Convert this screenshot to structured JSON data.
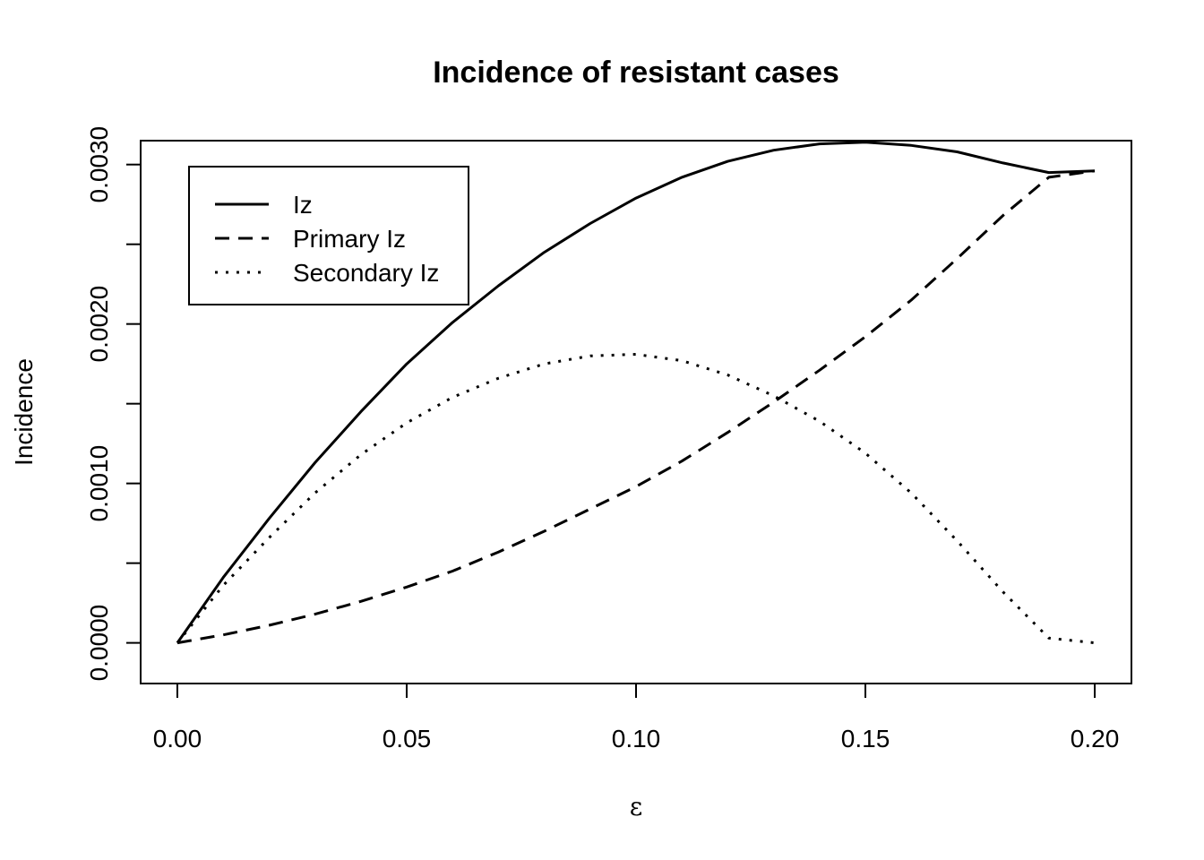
{
  "chart_data": {
    "type": "line",
    "title": "Incidence of resistant cases",
    "xlabel": "ε",
    "ylabel": "Incidence",
    "xlim": [
      -0.008,
      0.208
    ],
    "ylim": [
      -0.000255,
      0.00315
    ],
    "x_ticks": [
      "0.00",
      "0.05",
      "0.10",
      "0.15",
      "0.20"
    ],
    "y_ticks": [
      "0.0000",
      "0.0010",
      "0.0020",
      "0.0030"
    ],
    "grid": false,
    "legend_position": "top-left",
    "series": [
      {
        "name": "Iz",
        "style": "solid",
        "x": [
          0,
          0.01,
          0.02,
          0.03,
          0.04,
          0.05,
          0.06,
          0.07,
          0.08,
          0.09,
          0.1,
          0.11,
          0.12,
          0.13,
          0.14,
          0.15,
          0.16,
          0.17,
          0.18,
          0.19,
          0.2
        ],
        "y": [
          0,
          0.00041,
          0.00078,
          0.00113,
          0.00145,
          0.00175,
          0.00201,
          0.00224,
          0.00245,
          0.00263,
          0.00279,
          0.00292,
          0.00302,
          0.00309,
          0.00313,
          0.00314,
          0.00312,
          0.00308,
          0.00301,
          0.00295,
          0.00296
        ]
      },
      {
        "name": "Primary Iz",
        "style": "dashed",
        "x": [
          0,
          0.01,
          0.02,
          0.03,
          0.04,
          0.05,
          0.06,
          0.07,
          0.08,
          0.09,
          0.1,
          0.11,
          0.12,
          0.13,
          0.14,
          0.15,
          0.16,
          0.17,
          0.18,
          0.19,
          0.2
        ],
        "y": [
          0,
          5e-05,
          0.00011,
          0.00018,
          0.00026,
          0.00035,
          0.00045,
          0.00057,
          0.0007,
          0.00084,
          0.00098,
          0.00114,
          0.00132,
          0.00151,
          0.00171,
          0.00192,
          0.00215,
          0.00241,
          0.00268,
          0.00292,
          0.00296
        ]
      },
      {
        "name": "Secondary Iz",
        "style": "dotted",
        "x": [
          0,
          0.01,
          0.02,
          0.03,
          0.04,
          0.05,
          0.06,
          0.07,
          0.08,
          0.09,
          0.1,
          0.11,
          0.12,
          0.13,
          0.14,
          0.15,
          0.16,
          0.17,
          0.18,
          0.19,
          0.2
        ],
        "y": [
          0,
          0.00036,
          0.00066,
          0.00094,
          0.00118,
          0.00138,
          0.00154,
          0.00166,
          0.00175,
          0.0018,
          0.00181,
          0.00177,
          0.00168,
          0.00155,
          0.00139,
          0.00119,
          0.00094,
          0.00064,
          0.00032,
          3e-05,
          0.0
        ]
      }
    ]
  }
}
